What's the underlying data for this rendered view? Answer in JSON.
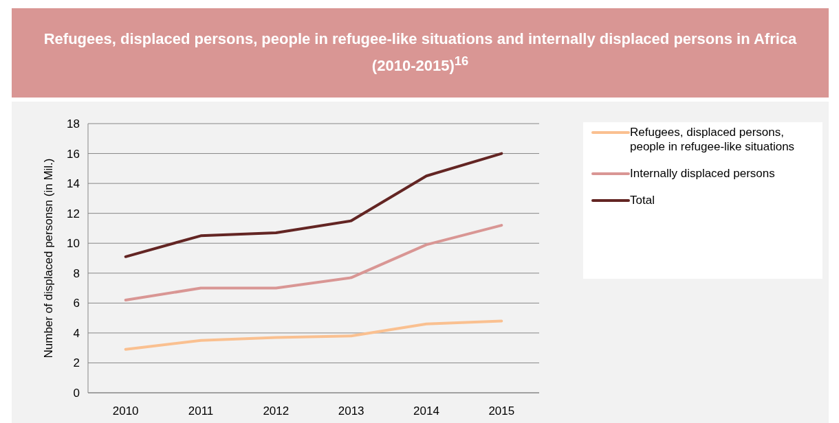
{
  "chart_data": {
    "type": "line",
    "title": "Refugees, displaced persons, people in refugee-like situations and internally displaced persons in Africa (2010-2015)$^{16}$",
    "ylabel": "Number of displaced personsn (in Mil.)",
    "categories": [
      "2010",
      "2011",
      "2012",
      "2013",
      "2014",
      "2015"
    ],
    "series": [
      {
        "name": "Refugees, displaced persons, people in refugee-like situations",
        "color": "#fac090",
        "values": [
          2.9,
          3.5,
          3.7,
          3.8,
          4.6,
          4.8
        ]
      },
      {
        "name": "Internally displaced persons",
        "color": "#d99694",
        "values": [
          6.2,
          7.0,
          7.0,
          7.7,
          9.9,
          11.2
        ]
      },
      {
        "name": "Total",
        "color": "#632523",
        "values": [
          9.1,
          10.5,
          10.7,
          11.5,
          14.5,
          16.0
        ]
      }
    ],
    "ylim": [
      0,
      18
    ],
    "yticks": [
      0,
      2,
      4,
      6,
      8,
      10,
      12,
      14,
      16,
      18
    ],
    "grid": "y",
    "legend": "right",
    "marker": "none",
    "line_style": "solid"
  }
}
